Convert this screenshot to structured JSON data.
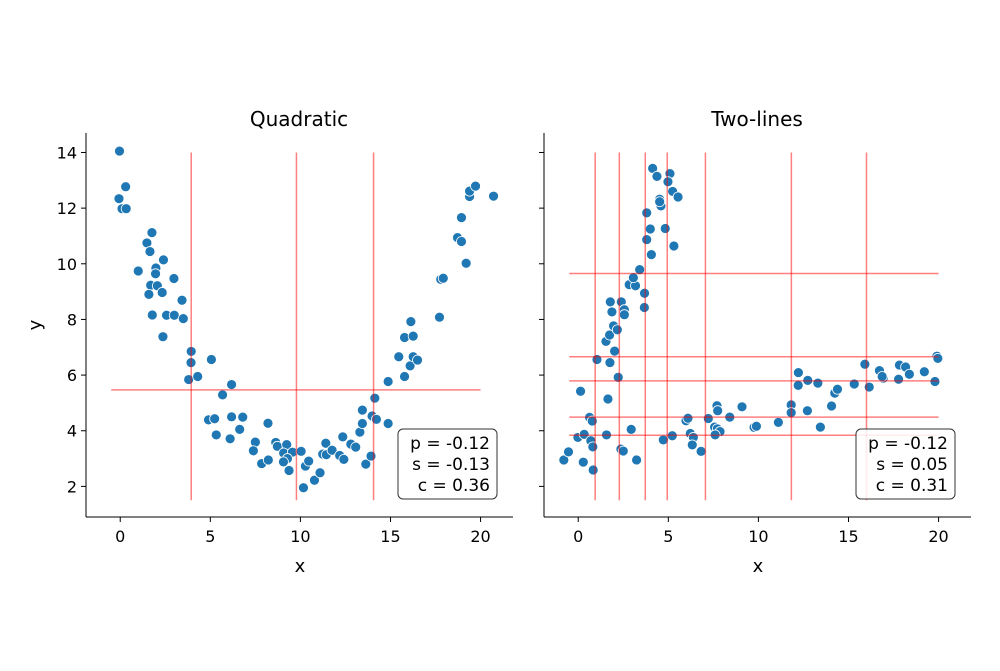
{
  "chart_data": [
    {
      "type": "scatter",
      "title": "Quadratic",
      "xlabel": "x",
      "ylabel": "y",
      "xlim": [
        -1.9,
        21.8
      ],
      "ylim": [
        0.9,
        14.7
      ],
      "xticks": [
        "0",
        "5",
        "10",
        "15",
        "20"
      ],
      "yticks": [
        "2",
        "4",
        "6",
        "8",
        "10",
        "12",
        "14"
      ],
      "grid": false,
      "marker_color": "#1f77b4",
      "line_color": "#ff0000",
      "stats": [
        "p = -0.12",
        "s = -0.13",
        "c = 0.36"
      ],
      "vlines": {
        "x": [
          3.94,
          9.78,
          14.06
        ],
        "y_range": [
          1.5,
          14
        ]
      },
      "hlines": {
        "y": [
          5.47
        ],
        "x_range": [
          -0.5,
          20
        ]
      },
      "points": [
        [
          -0.04,
          14.05
        ],
        [
          0.3,
          12.77
        ],
        [
          -0.07,
          12.34
        ],
        [
          0.1,
          11.98
        ],
        [
          0.33,
          11.98
        ],
        [
          1.76,
          11.12
        ],
        [
          1.48,
          10.75
        ],
        [
          1.65,
          10.44
        ],
        [
          2.4,
          10.14
        ],
        [
          1.98,
          9.85
        ],
        [
          1.96,
          9.64
        ],
        [
          1.0,
          9.74
        ],
        [
          2.98,
          9.47
        ],
        [
          1.69,
          9.23
        ],
        [
          2.06,
          9.21
        ],
        [
          2.33,
          8.97
        ],
        [
          1.59,
          8.9
        ],
        [
          3.43,
          8.69
        ],
        [
          1.78,
          8.16
        ],
        [
          2.57,
          8.15
        ],
        [
          3.0,
          8.15
        ],
        [
          3.5,
          8.03
        ],
        [
          2.37,
          7.38
        ],
        [
          3.94,
          6.85
        ],
        [
          3.93,
          6.45
        ],
        [
          5.06,
          6.56
        ],
        [
          3.8,
          5.84
        ],
        [
          4.3,
          5.95
        ],
        [
          6.18,
          5.66
        ],
        [
          5.68,
          5.29
        ],
        [
          4.9,
          4.39
        ],
        [
          5.24,
          4.43
        ],
        [
          6.18,
          4.5
        ],
        [
          6.8,
          4.49
        ],
        [
          8.2,
          4.27
        ],
        [
          5.33,
          3.85
        ],
        [
          6.1,
          3.71
        ],
        [
          6.63,
          4.05
        ],
        [
          7.5,
          3.59
        ],
        [
          7.39,
          3.28
        ],
        [
          7.85,
          2.82
        ],
        [
          8.22,
          2.95
        ],
        [
          8.63,
          3.58
        ],
        [
          8.72,
          3.44
        ],
        [
          9.24,
          3.5
        ],
        [
          9.07,
          3.2
        ],
        [
          9.56,
          3.23
        ],
        [
          9.28,
          3.0
        ],
        [
          9.06,
          2.88
        ],
        [
          9.37,
          2.57
        ],
        [
          10.04,
          3.26
        ],
        [
          10.17,
          1.95
        ],
        [
          10.28,
          2.73
        ],
        [
          10.46,
          2.91
        ],
        [
          10.78,
          2.22
        ],
        [
          11.09,
          2.49
        ],
        [
          11.24,
          3.16
        ],
        [
          11.44,
          3.14
        ],
        [
          11.41,
          3.55
        ],
        [
          11.76,
          3.3
        ],
        [
          12.35,
          3.78
        ],
        [
          12.18,
          3.11
        ],
        [
          12.41,
          2.97
        ],
        [
          12.8,
          3.52
        ],
        [
          13.07,
          3.41
        ],
        [
          13.3,
          3.95
        ],
        [
          13.44,
          4.26
        ],
        [
          13.44,
          4.74
        ],
        [
          13.63,
          2.8
        ],
        [
          13.92,
          3.09
        ],
        [
          13.98,
          4.53
        ],
        [
          14.22,
          4.41
        ],
        [
          14.13,
          5.17
        ],
        [
          14.87,
          4.26
        ],
        [
          14.87,
          5.77
        ],
        [
          15.46,
          6.66
        ],
        [
          15.78,
          5.95
        ],
        [
          16.09,
          6.33
        ],
        [
          16.26,
          6.66
        ],
        [
          16.5,
          6.54
        ],
        [
          15.78,
          7.35
        ],
        [
          16.26,
          7.4
        ],
        [
          16.13,
          7.92
        ],
        [
          17.72,
          8.08
        ],
        [
          17.79,
          9.44
        ],
        [
          17.93,
          9.48
        ],
        [
          18.72,
          10.94
        ],
        [
          18.94,
          10.8
        ],
        [
          18.94,
          11.66
        ],
        [
          19.2,
          10.02
        ],
        [
          19.39,
          12.42
        ],
        [
          19.39,
          12.61
        ],
        [
          19.72,
          12.79
        ],
        [
          20.72,
          12.43
        ]
      ]
    },
    {
      "type": "scatter",
      "title": "Two-lines",
      "xlabel": "x",
      "ylabel": "",
      "xlim": [
        -1.9,
        21.8
      ],
      "ylim": [
        0.9,
        14.7
      ],
      "xticks": [
        "0",
        "5",
        "10",
        "15",
        "20"
      ],
      "grid": false,
      "marker_color": "#1f77b4",
      "line_color": "#ff0000",
      "stats": [
        "p = -0.12",
        "s = 0.05",
        "c = 0.31"
      ],
      "vlines": {
        "x": [
          0.94,
          2.28,
          3.72,
          4.94,
          7.06,
          11.83,
          16.0
        ],
        "y_range": [
          1.5,
          14
        ]
      },
      "hlines": {
        "y": [
          9.65,
          6.66,
          5.79,
          4.49,
          3.84
        ],
        "x_range": [
          -0.5,
          20
        ]
      },
      "points": [
        [
          -0.8,
          2.95
        ],
        [
          -0.54,
          3.24
        ],
        [
          0.28,
          2.87
        ],
        [
          0.83,
          2.59
        ],
        [
          -0.02,
          3.76
        ],
        [
          0.33,
          3.87
        ],
        [
          0.7,
          3.64
        ],
        [
          0.81,
          3.42
        ],
        [
          0.63,
          4.48
        ],
        [
          0.78,
          4.35
        ],
        [
          0.13,
          5.42
        ],
        [
          1.04,
          6.56
        ],
        [
          1.57,
          3.85
        ],
        [
          1.65,
          5.14
        ],
        [
          1.76,
          6.45
        ],
        [
          2.02,
          6.86
        ],
        [
          1.54,
          7.21
        ],
        [
          1.74,
          7.44
        ],
        [
          1.96,
          7.77
        ],
        [
          2.17,
          7.63
        ],
        [
          1.87,
          8.27
        ],
        [
          1.78,
          8.63
        ],
        [
          2.22,
          5.92
        ],
        [
          2.37,
          3.34
        ],
        [
          2.5,
          3.27
        ],
        [
          2.94,
          4.05
        ],
        [
          3.24,
          2.95
        ],
        [
          2.39,
          8.63
        ],
        [
          2.56,
          8.35
        ],
        [
          2.56,
          8.17
        ],
        [
          2.83,
          9.25
        ],
        [
          3.18,
          9.21
        ],
        [
          3.06,
          9.5
        ],
        [
          3.41,
          9.79
        ],
        [
          3.68,
          8.94
        ],
        [
          3.67,
          8.43
        ],
        [
          3.8,
          10.87
        ],
        [
          4.06,
          10.33
        ],
        [
          4.0,
          11.25
        ],
        [
          3.8,
          11.83
        ],
        [
          4.13,
          13.43
        ],
        [
          4.37,
          13.14
        ],
        [
          4.52,
          12.32
        ],
        [
          4.59,
          12.08
        ],
        [
          4.52,
          12.23
        ],
        [
          4.83,
          11.27
        ],
        [
          5.09,
          13.24
        ],
        [
          4.98,
          12.95
        ],
        [
          5.24,
          12.6
        ],
        [
          5.54,
          12.4
        ],
        [
          5.31,
          10.64
        ],
        [
          4.72,
          3.67
        ],
        [
          5.22,
          3.82
        ],
        [
          5.98,
          4.36
        ],
        [
          6.09,
          4.45
        ],
        [
          6.22,
          3.9
        ],
        [
          6.39,
          3.76
        ],
        [
          6.33,
          3.49
        ],
        [
          6.82,
          3.26
        ],
        [
          7.22,
          4.44
        ],
        [
          7.7,
          4.9
        ],
        [
          7.74,
          4.72
        ],
        [
          7.57,
          4.13
        ],
        [
          7.72,
          4.07
        ],
        [
          7.87,
          3.97
        ],
        [
          7.6,
          3.85
        ],
        [
          8.41,
          4.49
        ],
        [
          9.09,
          4.86
        ],
        [
          9.76,
          4.12
        ],
        [
          9.89,
          4.16
        ],
        [
          11.11,
          4.3
        ],
        [
          11.82,
          4.93
        ],
        [
          11.82,
          4.65
        ],
        [
          12.22,
          6.09
        ],
        [
          12.21,
          5.63
        ],
        [
          12.74,
          5.81
        ],
        [
          13.3,
          5.71
        ],
        [
          12.72,
          4.72
        ],
        [
          13.44,
          4.13
        ],
        [
          14.06,
          4.89
        ],
        [
          14.24,
          5.35
        ],
        [
          14.39,
          5.49
        ],
        [
          15.32,
          5.68
        ],
        [
          15.91,
          6.39
        ],
        [
          16.15,
          5.57
        ],
        [
          16.72,
          6.16
        ],
        [
          16.93,
          5.89
        ],
        [
          16.87,
          5.95
        ],
        [
          17.78,
          5.85
        ],
        [
          17.83,
          6.36
        ],
        [
          18.17,
          6.29
        ],
        [
          18.38,
          6.03
        ],
        [
          19.21,
          6.12
        ],
        [
          19.8,
          5.77
        ],
        [
          19.91,
          6.68
        ],
        [
          19.96,
          6.6
        ]
      ]
    }
  ]
}
